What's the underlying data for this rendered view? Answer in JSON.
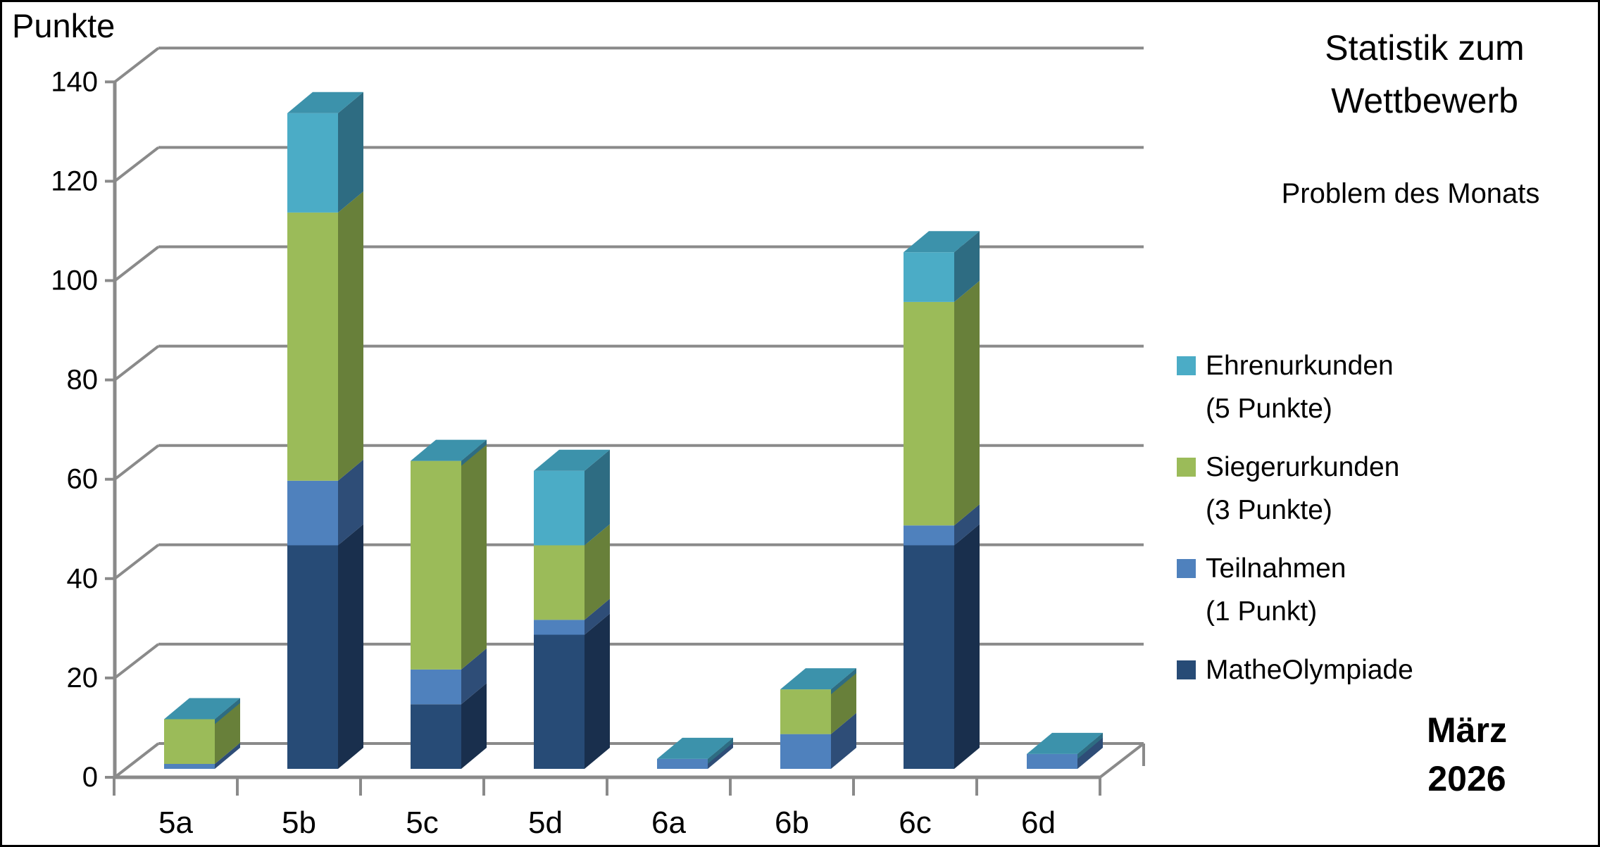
{
  "titles": {
    "y_axis_title": "Punkte",
    "main_title_line1": "Statistik zum",
    "main_title_line2": "Wettbewerb",
    "subtitle": "Problem des Monats",
    "period_line1": "März",
    "period_line2": "2026"
  },
  "legend": {
    "position": "right",
    "items": [
      {
        "label": "Ehrenurkunden",
        "sublabel": "(5 Punkte)",
        "color": "#4BACC6"
      },
      {
        "label": "Siegerurkunden",
        "sublabel": "(3 Punkte)",
        "color": "#9BBB59"
      },
      {
        "label": "Teilnahmen",
        "sublabel": "(1 Punkt)",
        "color": "#4F81BD"
      },
      {
        "label": "MatheOlympiade",
        "sublabel": "",
        "color": "#274B76"
      }
    ]
  },
  "chart_data": {
    "type": "bar",
    "stacked": true,
    "projection": "3d",
    "title": "Statistik zum Wettbewerb — Problem des Monats",
    "xlabel": "",
    "ylabel": "Punkte",
    "ylim": [
      0,
      140
    ],
    "yticks": [
      0,
      20,
      40,
      60,
      80,
      100,
      120,
      140
    ],
    "grid": true,
    "legend_position": "right",
    "categories": [
      "5a",
      "5b",
      "5c",
      "5d",
      "6a",
      "6b",
      "6c",
      "6d"
    ],
    "series": [
      {
        "name": "MatheOlympiade",
        "values": [
          0,
          45,
          13,
          27,
          0,
          0,
          45,
          0
        ],
        "color": "#274B76",
        "side_color": "#192F4D",
        "top_color": "#1F3A5C"
      },
      {
        "name": "Teilnahmen (1 Punkt)",
        "values": [
          1,
          13,
          7,
          3,
          2,
          7,
          4,
          3
        ],
        "color": "#4F81BD",
        "side_color": "#2E4D77",
        "top_color": "#3D68A0"
      },
      {
        "name": "Siegerurkunden (3 Punkte)",
        "values": [
          9,
          54,
          42,
          15,
          0,
          9,
          45,
          0
        ],
        "color": "#9BBB59",
        "side_color": "#68803A",
        "top_color": "#7E9A45"
      },
      {
        "name": "Ehrenurkunden (5 Punkte)",
        "values": [
          0,
          20,
          0,
          15,
          0,
          0,
          10,
          0
        ],
        "color": "#4BACC6",
        "side_color": "#2E6C82",
        "top_color": "#3C92AB"
      }
    ],
    "totals_by_category": [
      10,
      132,
      62,
      60,
      2,
      16,
      104,
      3
    ],
    "axis_color": "#8A8A8A",
    "text_color": "#000000"
  }
}
